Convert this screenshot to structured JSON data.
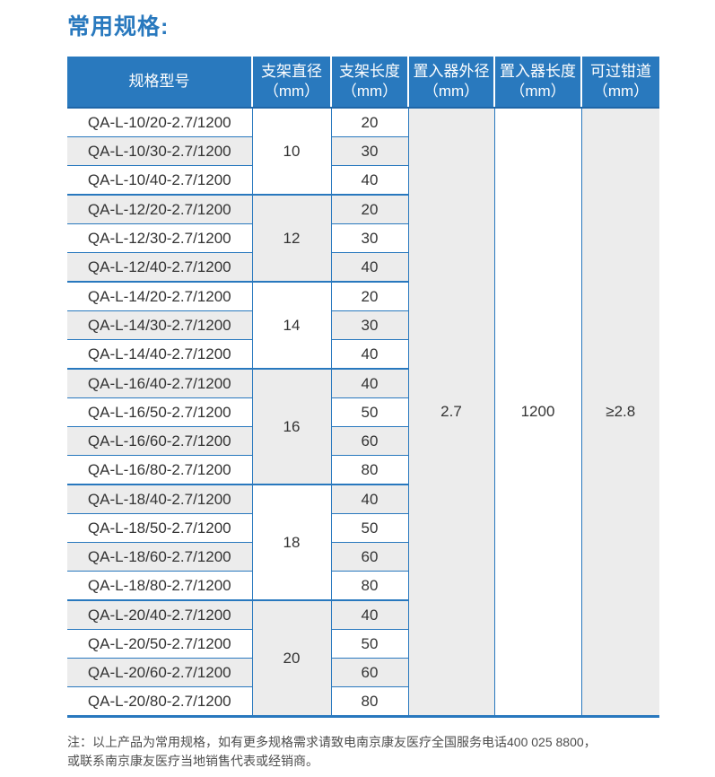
{
  "title": "常用规格:",
  "colors": {
    "accent_blue": "#2979be",
    "border_blue": "#2878be",
    "header_underline_blue": "#1e66a8",
    "row_alt_gray": "#ececec",
    "body_text": "#333333",
    "note_text": "#4d4d4d"
  },
  "table": {
    "headers": [
      {
        "title": "规格型号",
        "unit": ""
      },
      {
        "title": "支架直径",
        "unit": "（mm）"
      },
      {
        "title": "支架长度",
        "unit": "（mm）"
      },
      {
        "title": "置入器外径",
        "unit": "（mm）"
      },
      {
        "title": "置入器长度",
        "unit": "（mm）"
      },
      {
        "title": "可过钳道",
        "unit": "（mm）"
      }
    ],
    "shared": {
      "outer_diameter": "2.7",
      "introducer_length": "1200",
      "channel": "≥2.8"
    },
    "groups": [
      {
        "diameter": "10",
        "rows": [
          {
            "model": "QA-L-10/20-2.7/1200",
            "length": "20"
          },
          {
            "model": "QA-L-10/30-2.7/1200",
            "length": "30"
          },
          {
            "model": "QA-L-10/40-2.7/1200",
            "length": "40"
          }
        ]
      },
      {
        "diameter": "12",
        "rows": [
          {
            "model": "QA-L-12/20-2.7/1200",
            "length": "20"
          },
          {
            "model": "QA-L-12/30-2.7/1200",
            "length": "30"
          },
          {
            "model": "QA-L-12/40-2.7/1200",
            "length": "40"
          }
        ]
      },
      {
        "diameter": "14",
        "rows": [
          {
            "model": "QA-L-14/20-2.7/1200",
            "length": "20"
          },
          {
            "model": "QA-L-14/30-2.7/1200",
            "length": "30"
          },
          {
            "model": "QA-L-14/40-2.7/1200",
            "length": "40"
          }
        ]
      },
      {
        "diameter": "16",
        "rows": [
          {
            "model": "QA-L-16/40-2.7/1200",
            "length": "40"
          },
          {
            "model": "QA-L-16/50-2.7/1200",
            "length": "50"
          },
          {
            "model": "QA-L-16/60-2.7/1200",
            "length": "60"
          },
          {
            "model": "QA-L-16/80-2.7/1200",
            "length": "80"
          }
        ]
      },
      {
        "diameter": "18",
        "rows": [
          {
            "model": "QA-L-18/40-2.7/1200",
            "length": "40"
          },
          {
            "model": "QA-L-18/50-2.7/1200",
            "length": "50"
          },
          {
            "model": "QA-L-18/60-2.7/1200",
            "length": "60"
          },
          {
            "model": "QA-L-18/80-2.7/1200",
            "length": "80"
          }
        ]
      },
      {
        "diameter": "20",
        "rows": [
          {
            "model": "QA-L-20/40-2.7/1200",
            "length": "40"
          },
          {
            "model": "QA-L-20/50-2.7/1200",
            "length": "50"
          },
          {
            "model": "QA-L-20/60-2.7/1200",
            "length": "60"
          },
          {
            "model": "QA-L-20/80-2.7/1200",
            "length": "80"
          }
        ]
      }
    ]
  },
  "note": {
    "line1": "注：以上产品为常用规格，如有更多规格需求请致电南京康友医疗全国服务电话400 025 8800，",
    "line2": "或联系南京康友医疗当地销售代表或经销商。"
  }
}
